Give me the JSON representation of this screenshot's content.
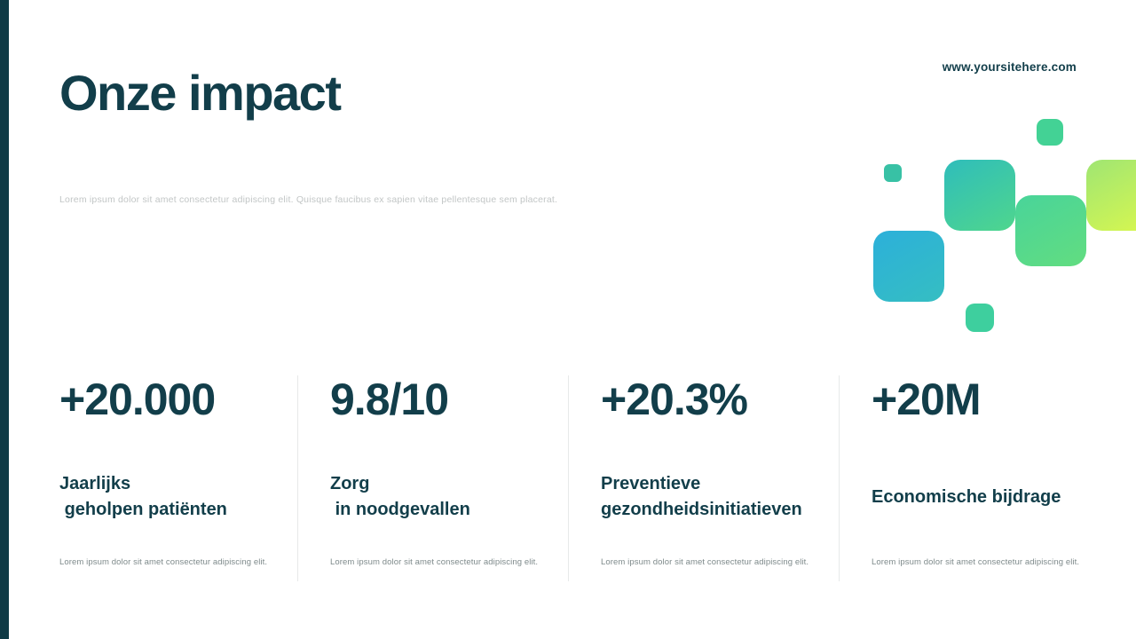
{
  "header": {
    "title": "Onze impact",
    "subtitle": "Lorem ipsum dolor sit amet consectetur adipiscing elit. Quisque faucibus ex sapien vitae pellentesque sem placerat.",
    "website": "www.yoursitehere.com"
  },
  "stats": [
    {
      "value": "+20.000",
      "label": "Jaarlijks\n geholpen patiënten",
      "description": "Lorem ipsum dolor sit amet consectetur adipiscing elit."
    },
    {
      "value": "9.8/10",
      "label": "Zorg\n in noodgevallen",
      "description": "Lorem ipsum dolor sit amet consectetur adipiscing elit."
    },
    {
      "value": "+20.3%",
      "label": "Preventieve\ngezondheidsinitiatieven",
      "description": "Lorem ipsum dolor sit amet consectetur adipiscing elit."
    },
    {
      "value": "+20M",
      "label": "Economische bijdrage",
      "description": "Lorem ipsum dolor sit amet consectetur adipiscing elit."
    }
  ],
  "colors": {
    "primary_dark_teal": "#123e4a",
    "accent_cyan": "#2db3d8",
    "accent_teal": "#2fbdbb",
    "accent_green": "#4fd691",
    "accent_lime": "#daf84e",
    "divider_gray": "#e7e9e9"
  }
}
